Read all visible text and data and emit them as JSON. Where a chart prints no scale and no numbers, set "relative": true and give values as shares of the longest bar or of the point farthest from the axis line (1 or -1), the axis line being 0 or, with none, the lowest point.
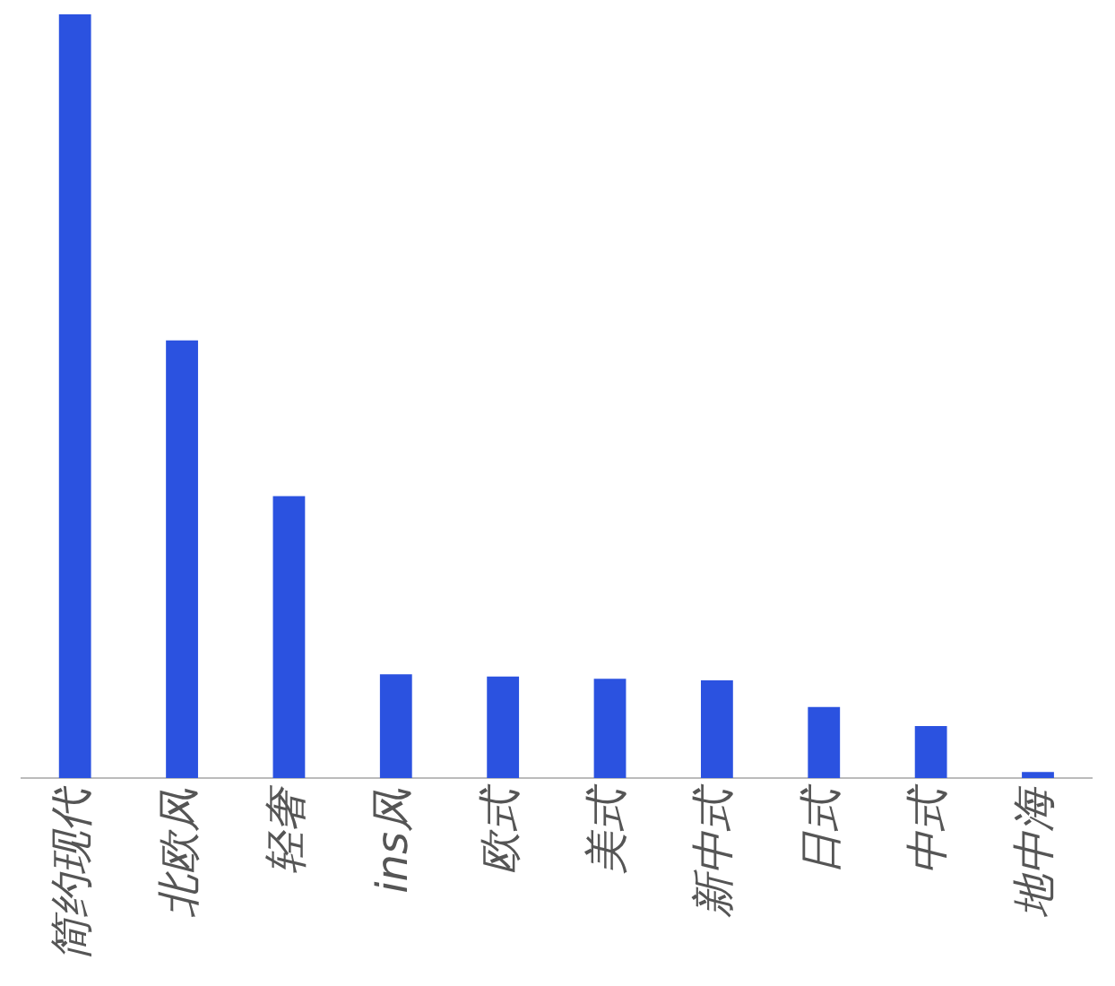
{
  "chart_data": {
    "type": "bar",
    "relative": true,
    "categories": [
      "简约现代",
      "北欧风",
      "轻奢",
      "ins风",
      "欧式",
      "美式",
      "新中式",
      "日式",
      "中式",
      "地中海"
    ],
    "values": [
      1,
      0.573,
      0.369,
      0.136,
      0.133,
      0.13,
      0.128,
      0.093,
      0.068,
      0.008
    ],
    "color": "#2b52e0",
    "grid": false,
    "legend": false
  }
}
